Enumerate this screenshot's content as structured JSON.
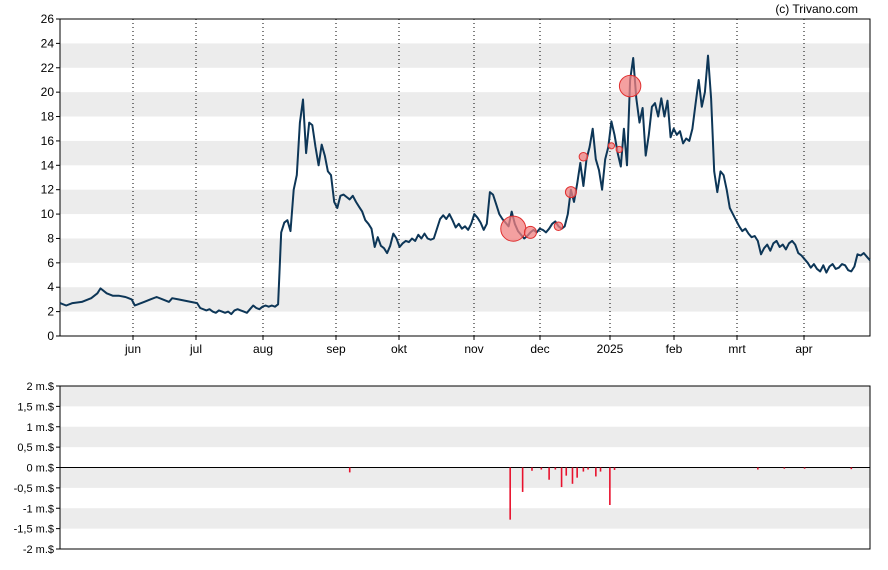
{
  "credit": "(c) Trivano.com",
  "colors": {
    "price_line": "#0d3657",
    "band": "#ececec",
    "volume_bar": "#e8112d",
    "bubble_fill": "#f08080",
    "bubble_stroke": "#e03030"
  },
  "chart_data": [
    {
      "type": "line",
      "title": "",
      "xlabel": "",
      "ylabel": "",
      "ylim": [
        0,
        26
      ],
      "y_ticks": [
        0,
        2,
        4,
        6,
        8,
        10,
        12,
        14,
        16,
        18,
        20,
        22,
        24,
        26
      ],
      "x_ticks": [
        "jun",
        "jul",
        "aug",
        "sep",
        "okt",
        "nov",
        "dec",
        "2025",
        "feb",
        "mrt",
        "apr"
      ],
      "grid": "vertical dotted lines at month ticks, alternating horizontal bands",
      "series": [
        {
          "name": "",
          "points": [
            [
              0,
              2.7
            ],
            [
              4,
              2.5
            ],
            [
              8,
              2.7
            ],
            [
              14,
              2.8
            ],
            [
              20,
              3.1
            ],
            [
              24,
              3.5
            ],
            [
              26,
              3.9
            ],
            [
              30,
              3.5
            ],
            [
              34,
              3.3
            ],
            [
              38,
              3.3
            ],
            [
              42,
              3.2
            ],
            [
              46,
              3.0
            ],
            [
              48,
              2.5
            ],
            [
              50,
              2.6
            ],
            [
              54,
              2.8
            ],
            [
              58,
              3.0
            ],
            [
              62,
              3.2
            ],
            [
              66,
              3.0
            ],
            [
              70,
              2.8
            ],
            [
              72,
              3.1
            ],
            [
              76,
              3.0
            ],
            [
              80,
              2.9
            ],
            [
              84,
              2.8
            ],
            [
              88,
              2.7
            ],
            [
              90,
              2.3
            ],
            [
              94,
              2.1
            ],
            [
              96,
              2.2
            ],
            [
              98,
              2.0
            ],
            [
              100,
              1.9
            ],
            [
              102,
              2.1
            ],
            [
              104,
              2.0
            ],
            [
              106,
              1.9
            ],
            [
              108,
              2.0
            ],
            [
              110,
              1.8
            ],
            [
              112,
              2.1
            ],
            [
              114,
              2.2
            ],
            [
              116,
              2.1
            ],
            [
              118,
              2.0
            ],
            [
              120,
              1.9
            ],
            [
              122,
              2.2
            ],
            [
              124,
              2.5
            ],
            [
              126,
              2.3
            ],
            [
              128,
              2.2
            ],
            [
              130,
              2.4
            ],
            [
              132,
              2.5
            ],
            [
              134,
              2.4
            ],
            [
              136,
              2.5
            ],
            [
              138,
              2.4
            ],
            [
              140,
              2.6
            ],
            [
              142,
              8.5
            ],
            [
              144,
              9.3
            ],
            [
              146,
              9.5
            ],
            [
              148,
              8.6
            ],
            [
              150,
              12.0
            ],
            [
              152,
              13.2
            ],
            [
              154,
              17.5
            ],
            [
              156,
              19.4
            ],
            [
              158,
              15.0
            ],
            [
              160,
              17.5
            ],
            [
              162,
              17.3
            ],
            [
              164,
              15.5
            ],
            [
              166,
              14.0
            ],
            [
              168,
              15.7
            ],
            [
              170,
              14.8
            ],
            [
              172,
              13.5
            ],
            [
              174,
              13.2
            ],
            [
              176,
              11.0
            ],
            [
              178,
              10.5
            ],
            [
              180,
              11.5
            ],
            [
              182,
              11.6
            ],
            [
              184,
              11.4
            ],
            [
              186,
              11.2
            ],
            [
              188,
              11.5
            ],
            [
              190,
              11.0
            ],
            [
              192,
              10.6
            ],
            [
              194,
              10.2
            ],
            [
              196,
              9.5
            ],
            [
              198,
              9.2
            ],
            [
              200,
              8.8
            ],
            [
              202,
              7.3
            ],
            [
              204,
              8.1
            ],
            [
              206,
              7.4
            ],
            [
              208,
              7.2
            ],
            [
              210,
              6.8
            ],
            [
              212,
              7.4
            ],
            [
              214,
              8.4
            ],
            [
              216,
              8.0
            ],
            [
              218,
              7.3
            ],
            [
              220,
              7.6
            ],
            [
              222,
              7.8
            ],
            [
              224,
              7.7
            ],
            [
              226,
              8.0
            ],
            [
              228,
              7.8
            ],
            [
              230,
              8.3
            ],
            [
              232,
              8.0
            ],
            [
              234,
              8.4
            ],
            [
              236,
              8.0
            ],
            [
              238,
              7.9
            ],
            [
              240,
              8.0
            ],
            [
              244,
              9.6
            ],
            [
              246,
              9.9
            ],
            [
              248,
              9.6
            ],
            [
              250,
              10.0
            ],
            [
              252,
              9.5
            ],
            [
              254,
              8.9
            ],
            [
              256,
              9.2
            ],
            [
              258,
              8.8
            ],
            [
              260,
              9.0
            ],
            [
              262,
              8.7
            ],
            [
              264,
              9.2
            ],
            [
              266,
              10.0
            ],
            [
              268,
              9.7
            ],
            [
              270,
              9.3
            ],
            [
              272,
              8.7
            ],
            [
              274,
              9.2
            ],
            [
              276,
              11.8
            ],
            [
              278,
              11.6
            ],
            [
              280,
              10.8
            ],
            [
              282,
              10.0
            ],
            [
              284,
              9.6
            ],
            [
              286,
              9.3
            ],
            [
              288,
              9.0
            ],
            [
              290,
              10.2
            ],
            [
              292,
              9.2
            ],
            [
              294,
              8.6
            ],
            [
              296,
              8.3
            ],
            [
              298,
              8.0
            ],
            [
              300,
              8.2
            ],
            [
              302,
              8.5
            ],
            [
              304,
              8.7
            ],
            [
              306,
              8.5
            ],
            [
              308,
              8.8
            ],
            [
              310,
              8.7
            ],
            [
              312,
              8.5
            ],
            [
              314,
              8.8
            ],
            [
              316,
              9.2
            ],
            [
              318,
              9.4
            ],
            [
              320,
              9.0
            ],
            [
              322,
              8.8
            ],
            [
              324,
              9.0
            ],
            [
              326,
              10.0
            ],
            [
              328,
              12.0
            ],
            [
              330,
              11.0
            ],
            [
              332,
              12.5
            ],
            [
              334,
              14.2
            ],
            [
              336,
              12.3
            ],
            [
              338,
              14.5
            ],
            [
              340,
              15.5
            ],
            [
              342,
              17.0
            ],
            [
              344,
              14.5
            ],
            [
              346,
              13.6
            ],
            [
              348,
              12.0
            ],
            [
              350,
              14.5
            ],
            [
              352,
              15.5
            ],
            [
              354,
              17.6
            ],
            [
              356,
              16.5
            ],
            [
              358,
              15.0
            ],
            [
              360,
              13.9
            ],
            [
              362,
              17.0
            ],
            [
              364,
              14.0
            ],
            [
              366,
              21.0
            ],
            [
              368,
              22.8
            ],
            [
              370,
              19.5
            ],
            [
              372,
              17.5
            ],
            [
              374,
              18.7
            ],
            [
              376,
              14.8
            ],
            [
              378,
              16.5
            ],
            [
              380,
              18.8
            ],
            [
              382,
              19.1
            ],
            [
              384,
              18.0
            ],
            [
              386,
              19.5
            ],
            [
              388,
              18.0
            ],
            [
              390,
              19.3
            ],
            [
              392,
              16.3
            ],
            [
              394,
              17.0
            ],
            [
              396,
              16.5
            ],
            [
              398,
              16.8
            ],
            [
              400,
              15.8
            ],
            [
              402,
              16.2
            ],
            [
              404,
              16.0
            ],
            [
              406,
              17.0
            ],
            [
              408,
              19.0
            ],
            [
              410,
              21.0
            ],
            [
              412,
              18.8
            ],
            [
              414,
              20.0
            ],
            [
              416,
              23.0
            ],
            [
              418,
              19.5
            ],
            [
              420,
              13.5
            ],
            [
              422,
              11.8
            ],
            [
              424,
              13.5
            ],
            [
              426,
              13.2
            ],
            [
              428,
              12.0
            ],
            [
              430,
              10.5
            ],
            [
              432,
              10.0
            ],
            [
              434,
              9.5
            ],
            [
              436,
              9.0
            ],
            [
              438,
              8.6
            ],
            [
              440,
              8.8
            ],
            [
              442,
              8.4
            ],
            [
              444,
              8.1
            ],
            [
              446,
              8.2
            ],
            [
              448,
              7.8
            ],
            [
              450,
              6.7
            ],
            [
              452,
              7.2
            ],
            [
              454,
              7.5
            ],
            [
              456,
              7.0
            ],
            [
              458,
              7.6
            ],
            [
              460,
              7.8
            ],
            [
              462,
              7.3
            ],
            [
              464,
              7.5
            ],
            [
              466,
              7.1
            ],
            [
              468,
              7.6
            ],
            [
              470,
              7.8
            ],
            [
              472,
              7.5
            ],
            [
              474,
              6.8
            ],
            [
              476,
              6.6
            ],
            [
              478,
              6.3
            ],
            [
              480,
              6.0
            ],
            [
              482,
              5.6
            ],
            [
              484,
              5.9
            ],
            [
              486,
              5.5
            ],
            [
              488,
              5.3
            ],
            [
              490,
              5.8
            ],
            [
              492,
              5.2
            ],
            [
              494,
              5.7
            ],
            [
              496,
              5.9
            ],
            [
              498,
              5.5
            ],
            [
              500,
              5.6
            ],
            [
              502,
              5.9
            ],
            [
              504,
              5.8
            ],
            [
              506,
              5.4
            ],
            [
              508,
              5.3
            ],
            [
              510,
              5.7
            ],
            [
              512,
              6.7
            ],
            [
              514,
              6.6
            ],
            [
              516,
              6.8
            ],
            [
              518,
              6.5
            ],
            [
              520,
              6.2
            ]
          ]
        }
      ],
      "bubbles": [
        {
          "x": 291,
          "y": 8.8,
          "size": 1.3
        },
        {
          "x": 302,
          "y": 8.5,
          "size": 0.3
        },
        {
          "x": 320,
          "y": 9.0,
          "size": 0.15
        },
        {
          "x": 328,
          "y": 11.8,
          "size": 0.25
        },
        {
          "x": 336,
          "y": 14.7,
          "size": 0.15
        },
        {
          "x": 354,
          "y": 15.6,
          "size": 0.08
        },
        {
          "x": 359,
          "y": 15.3,
          "size": 0.08
        },
        {
          "x": 366,
          "y": 20.5,
          "size": 0.95
        }
      ]
    },
    {
      "type": "bar",
      "title": "",
      "xlabel": "",
      "ylabel": "",
      "ylim": [
        -2,
        2
      ],
      "y_ticks": [
        {
          "value": 2,
          "label": "2 m.$"
        },
        {
          "value": 1.5,
          "label": "1,5 m.$"
        },
        {
          "value": 1,
          "label": "1 m.$"
        },
        {
          "value": 0.5,
          "label": "0,5 m.$"
        },
        {
          "value": 0,
          "label": "0 m.$"
        },
        {
          "value": -0.5,
          "label": "-0,5 m.$"
        },
        {
          "value": -1,
          "label": "-1 m.$"
        },
        {
          "value": -1.5,
          "label": "-1,5 m.$"
        },
        {
          "value": -2,
          "label": "-2 m.$"
        }
      ],
      "series": [
        {
          "name": "",
          "points": [
            [
              186,
              -0.12
            ],
            [
              289,
              -1.28
            ],
            [
              297,
              -0.6
            ],
            [
              303,
              -0.08
            ],
            [
              309,
              -0.05
            ],
            [
              314,
              -0.3
            ],
            [
              318,
              -0.05
            ],
            [
              322,
              -0.48
            ],
            [
              325,
              -0.2
            ],
            [
              329,
              -0.4
            ],
            [
              332,
              -0.25
            ],
            [
              336,
              -0.1
            ],
            [
              339,
              -0.05
            ],
            [
              344,
              -0.22
            ],
            [
              347,
              -0.1
            ],
            [
              353,
              -0.92
            ],
            [
              356,
              -0.06
            ],
            [
              448,
              -0.05
            ],
            [
              465,
              -0.03
            ],
            [
              478,
              -0.03
            ],
            [
              508,
              -0.04
            ]
          ]
        }
      ]
    }
  ]
}
